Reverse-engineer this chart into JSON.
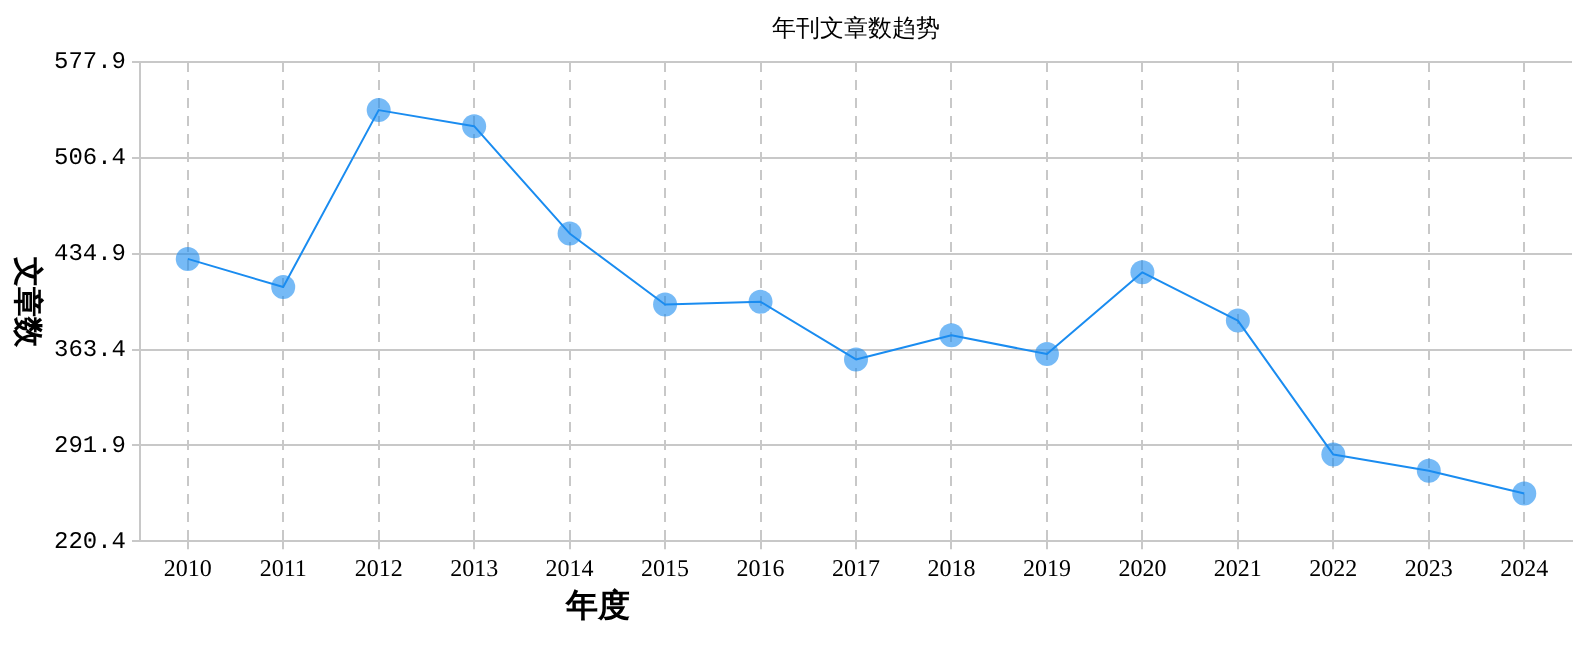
{
  "chart_data": {
    "type": "line",
    "title": "年刊文章数趋势",
    "xlabel": "年度",
    "ylabel": "文章数",
    "categories": [
      "2010",
      "2011",
      "2012",
      "2013",
      "2014",
      "2015",
      "2016",
      "2017",
      "2018",
      "2019",
      "2020",
      "2021",
      "2022",
      "2023",
      "2024"
    ],
    "series": [
      {
        "color": "#1a8cf0",
        "values": [
          431,
          410,
          542,
          530,
          450,
          397,
          399,
          356,
          374,
          360,
          421,
          385,
          285,
          273,
          256
        ]
      }
    ],
    "ylim": [
      220.4,
      577.9
    ],
    "yticks": [
      220.4,
      291.9,
      363.4,
      434.9,
      506.4,
      577.9
    ],
    "grid": true,
    "legend": false,
    "marker": "circle",
    "line_style": "solid"
  }
}
